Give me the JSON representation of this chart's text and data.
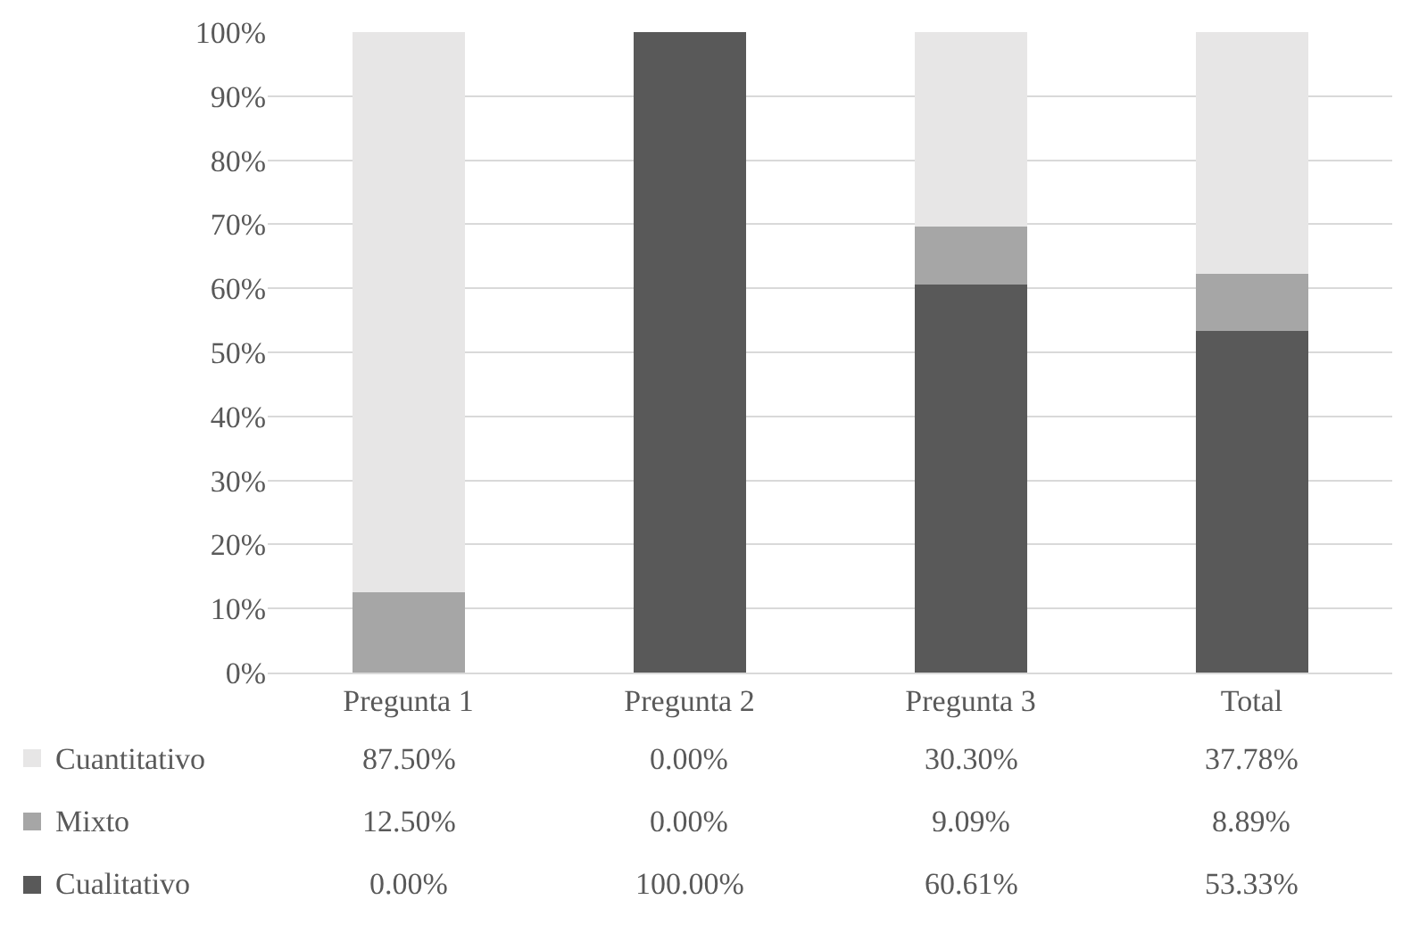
{
  "chart_data": {
    "type": "bar",
    "stacked": true,
    "categories": [
      "Pregunta 1",
      "Pregunta 2",
      "Pregunta 3",
      "Total"
    ],
    "series": [
      {
        "name": "Cualitativo",
        "color": "#595959",
        "values": [
          0,
          100,
          60.61,
          53.33
        ],
        "value_labels": [
          "0.00%",
          "100.00%",
          "60.61%",
          "53.33%"
        ]
      },
      {
        "name": "Mixto",
        "color": "#a6a6a6",
        "values": [
          12.5,
          0,
          9.09,
          8.89
        ],
        "value_labels": [
          "12.50%",
          "0.00%",
          "9.09%",
          "8.89%"
        ]
      },
      {
        "name": "Cuantitativo",
        "color": "#e7e6e6",
        "values": [
          87.5,
          0,
          30.3,
          37.78
        ],
        "value_labels": [
          "87.50%",
          "0.00%",
          "30.30%",
          "37.78%"
        ]
      }
    ],
    "ylim": [
      0,
      100
    ],
    "yticks": [
      {
        "value": 0,
        "label": "0%"
      },
      {
        "value": 10,
        "label": "10%"
      },
      {
        "value": 20,
        "label": "20%"
      },
      {
        "value": 30,
        "label": "30%"
      },
      {
        "value": 40,
        "label": "40%"
      },
      {
        "value": 50,
        "label": "50%"
      },
      {
        "value": 60,
        "label": "60%"
      },
      {
        "value": 70,
        "label": "70%"
      },
      {
        "value": 80,
        "label": "80%"
      },
      {
        "value": 90,
        "label": "90%"
      },
      {
        "value": 100,
        "label": "100%"
      }
    ],
    "grid": "y",
    "legend": "bottom"
  }
}
